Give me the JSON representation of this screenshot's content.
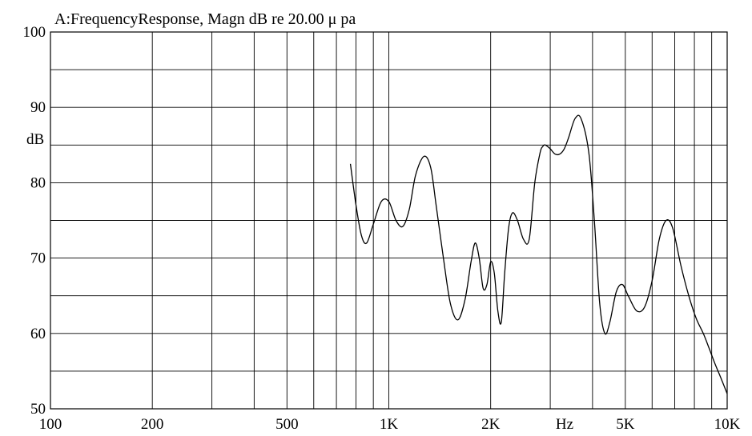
{
  "chart_data": {
    "type": "line",
    "title": "A:FrequencyResponse,  Magn dB re 20.00 μ pa",
    "xlabel": "Hz",
    "ylabel": "dB",
    "xscale": "log",
    "xlim": [
      100,
      10000
    ],
    "ylim": [
      50,
      100
    ],
    "grid": true,
    "x_ticks": [
      100,
      200,
      500,
      1000,
      2000,
      5000,
      10000
    ],
    "x_tick_labels": [
      "100",
      "200",
      "500",
      "1K",
      "2K",
      "5K",
      "10K"
    ],
    "y_ticks": [
      50,
      60,
      70,
      80,
      90,
      100
    ],
    "y_tick_labels": [
      "50",
      "60",
      "70",
      "80",
      "90",
      "100"
    ],
    "series": [
      {
        "color": "#000000",
        "x": [
          770,
          800,
          830,
          860,
          900,
          950,
          1000,
          1050,
          1100,
          1150,
          1200,
          1270,
          1330,
          1380,
          1450,
          1520,
          1600,
          1680,
          1750,
          1800,
          1850,
          1900,
          1950,
          2000,
          2050,
          2100,
          2150,
          2200,
          2260,
          2320,
          2400,
          2500,
          2600,
          2700,
          2800,
          2850,
          2900,
          3000,
          3100,
          3200,
          3300,
          3400,
          3550,
          3700,
          3900,
          4050,
          4200,
          4350,
          4500,
          4700,
          4900,
          5100,
          5400,
          5700,
          6000,
          6300,
          6600,
          6900,
          7300,
          7700,
          8100,
          8500,
          8850,
          9200,
          9600,
          10000
        ],
        "y": [
          82.5,
          77.0,
          73.0,
          72.0,
          74.5,
          77.5,
          77.5,
          75.0,
          74.2,
          76.5,
          81.0,
          83.5,
          82.0,
          77.0,
          70.0,
          64.0,
          61.8,
          64.5,
          69.5,
          72.0,
          70.0,
          66.0,
          66.5,
          69.5,
          68.0,
          63.0,
          61.5,
          68.0,
          74.0,
          76.0,
          75.0,
          72.5,
          72.5,
          80.0,
          84.0,
          84.8,
          85.0,
          84.5,
          83.8,
          83.8,
          84.5,
          86.0,
          88.5,
          88.5,
          84.0,
          75.0,
          64.0,
          60.0,
          61.5,
          65.5,
          66.5,
          65.0,
          63.0,
          63.5,
          67.0,
          72.5,
          75.0,
          74.0,
          69.0,
          65.0,
          62.0,
          60.0,
          58.0,
          56.0,
          54.0,
          52.0
        ]
      }
    ]
  }
}
